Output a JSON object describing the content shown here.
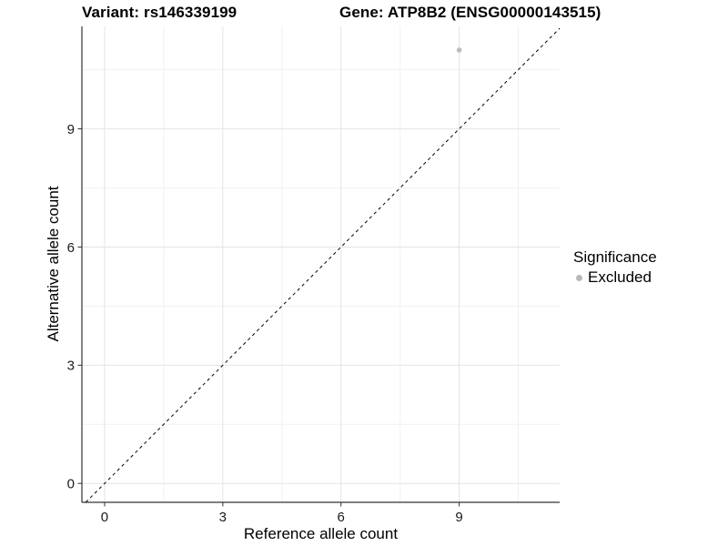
{
  "chart_data": {
    "type": "scatter",
    "titles": {
      "left": "Variant: rs146339199",
      "right": "Gene: ATP8B2 (ENSG00000143515)"
    },
    "xlabel": "Reference allele count",
    "ylabel": "Alternative allele count",
    "xlim": [
      -0.577,
      11.55
    ],
    "ylim": [
      -0.48,
      11.6
    ],
    "x_ticks": [
      0,
      3,
      6,
      9
    ],
    "y_ticks": [
      0,
      3,
      6,
      9
    ],
    "x_minor_gridlines": [
      1.5,
      4.5,
      7.5,
      10.5
    ],
    "y_minor_gridlines": [
      1.5,
      4.5,
      7.5,
      10.5
    ],
    "grid": true,
    "points": [
      {
        "x": 9,
        "y": 11,
        "series": "Excluded"
      }
    ],
    "identity_line": {
      "shown": true,
      "style": "dashed",
      "equation": "y = x"
    },
    "legend": {
      "position": "right",
      "title": "Significance",
      "items": [
        {
          "label": "Excluded",
          "color": "#b8b8b8"
        }
      ]
    },
    "colors": {
      "background": "#ffffff",
      "grid_major": "#e4e4e4",
      "grid_minor": "#f1f1f1",
      "axis_line": "#333333",
      "tick_text": "#1a1a1a",
      "point": "#bcbcbc",
      "identity_line": "#000000"
    }
  }
}
